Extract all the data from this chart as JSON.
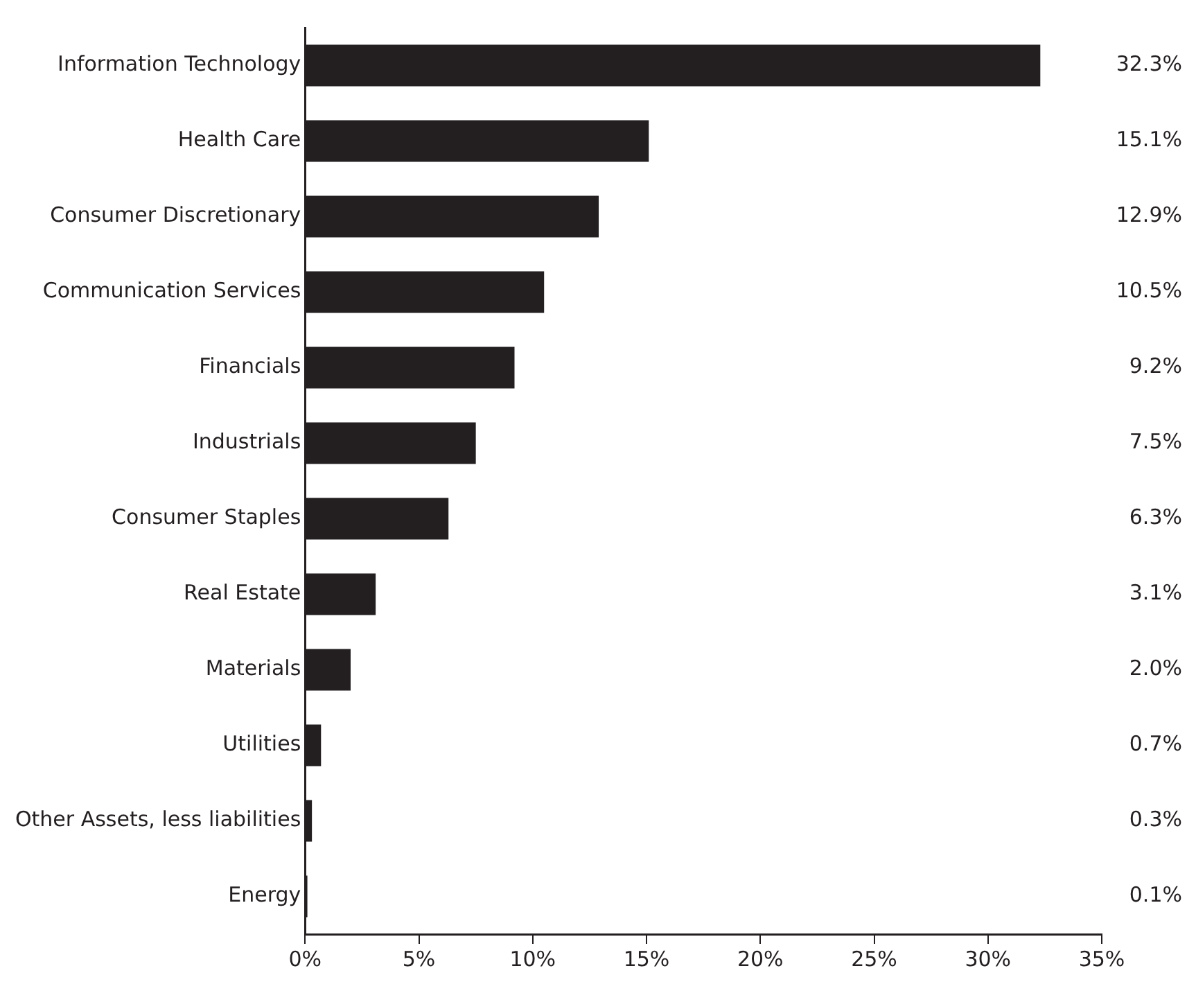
{
  "chart_data": {
    "type": "bar",
    "orientation": "horizontal",
    "categories": [
      "Information Technology",
      "Health Care",
      "Consumer Discretionary",
      "Communication Services",
      "Financials",
      "Industrials",
      "Consumer Staples",
      "Real Estate",
      "Materials",
      "Utilities",
      "Other Assets, less liabilities",
      "Energy"
    ],
    "values": [
      32.3,
      15.1,
      12.9,
      10.5,
      9.2,
      7.5,
      6.3,
      3.1,
      2.0,
      0.7,
      0.3,
      0.1
    ],
    "value_labels": [
      "32.3%",
      "15.1%",
      "12.9%",
      "10.5%",
      "9.2%",
      "7.5%",
      "6.3%",
      "3.1%",
      "2.0%",
      "0.7%",
      "0.3%",
      "0.1%"
    ],
    "color": "#231f20",
    "xlim": [
      0,
      35
    ],
    "xticks": [
      {
        "value": 0,
        "label": "0%"
      },
      {
        "value": 5,
        "label": "5%"
      },
      {
        "value": 10,
        "label": "10%"
      },
      {
        "value": 15,
        "label": "15%"
      },
      {
        "value": 20,
        "label": "20%"
      },
      {
        "value": 25,
        "label": "25%"
      },
      {
        "value": 30,
        "label": "30%"
      },
      {
        "value": 35,
        "label": "35%"
      }
    ],
    "legend": false
  }
}
